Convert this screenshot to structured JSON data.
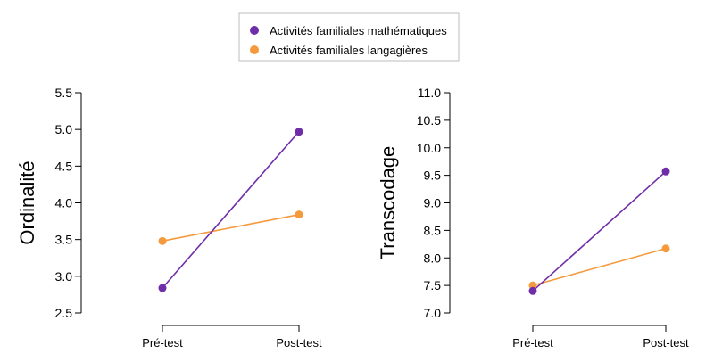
{
  "legend": {
    "entries": [
      {
        "label": "Activités familiales mathématiques",
        "color": "#6f2da8"
      },
      {
        "label": "Activités familiales langagières",
        "color": "#f59a3c"
      }
    ]
  },
  "chart_data": [
    {
      "type": "line",
      "title": "",
      "xlabel": "",
      "ylabel": "Ordinalité",
      "categories": [
        "Pré-test",
        "Post-test"
      ],
      "ylim": [
        2.5,
        5.5
      ],
      "yticks": [
        "2.5",
        "3.0",
        "3.5",
        "4.0",
        "4.5",
        "5.0",
        "5.5"
      ],
      "grid": false,
      "series": [
        {
          "name": "Activités familiales mathématiques",
          "color": "#6f2da8",
          "values": [
            2.84,
            4.97
          ]
        },
        {
          "name": "Activités familiales langagières",
          "color": "#f59a3c",
          "values": [
            3.48,
            3.84
          ]
        }
      ]
    },
    {
      "type": "line",
      "title": "",
      "xlabel": "",
      "ylabel": "Transcodage",
      "categories": [
        "Pré-test",
        "Post-test"
      ],
      "ylim": [
        7.0,
        11.0
      ],
      "yticks": [
        "7.0",
        "7.5",
        "8.0",
        "8.5",
        "9.0",
        "9.5",
        "10.0",
        "10.5",
        "11.0"
      ],
      "grid": false,
      "series": [
        {
          "name": "Activités familiales mathématiques",
          "color": "#6f2da8",
          "values": [
            7.4,
            9.57
          ]
        },
        {
          "name": "Activités familiales langagières",
          "color": "#f59a3c",
          "values": [
            7.5,
            8.17
          ]
        }
      ]
    }
  ]
}
